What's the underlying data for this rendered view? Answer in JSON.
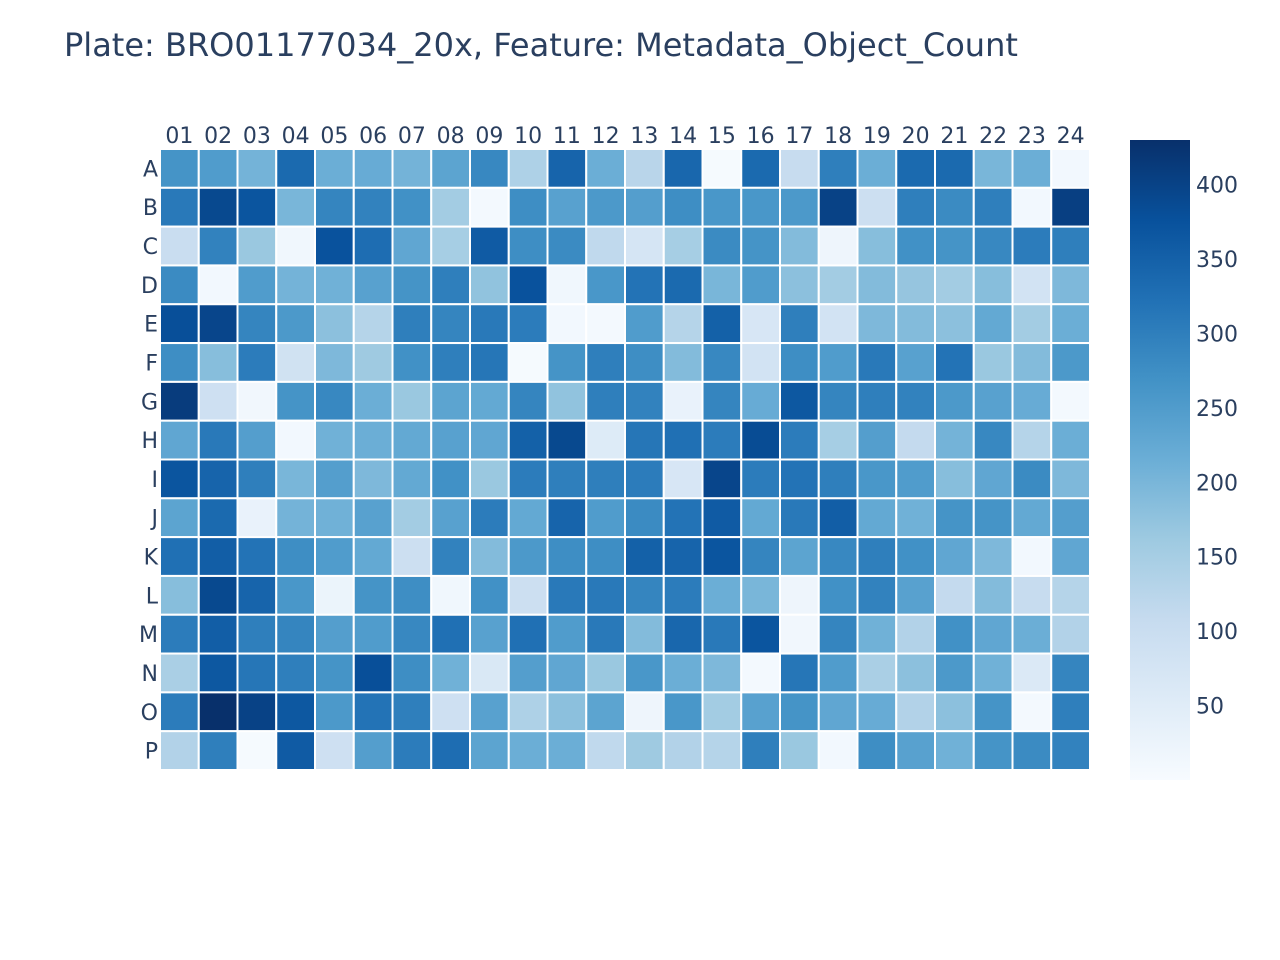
{
  "chart_data": {
    "type": "heatmap",
    "title": "Plate: BRO01177034_20x, Feature: Metadata_Object_Count",
    "columns": [
      "01",
      "02",
      "03",
      "04",
      "05",
      "06",
      "07",
      "08",
      "09",
      "10",
      "11",
      "12",
      "13",
      "14",
      "15",
      "16",
      "17",
      "18",
      "19",
      "20",
      "21",
      "22",
      "23",
      "24"
    ],
    "rows": [
      "A",
      "B",
      "C",
      "D",
      "E",
      "F",
      "G",
      "H",
      "I",
      "J",
      "K",
      "L",
      "M",
      "N",
      "O",
      "P"
    ],
    "values": [
      [
        265,
        250,
        205,
        335,
        215,
        220,
        205,
        235,
        285,
        140,
        345,
        215,
        125,
        340,
        5,
        335,
        105,
        300,
        215,
        335,
        335,
        200,
        215,
        10
      ],
      [
        310,
        390,
        370,
        200,
        290,
        295,
        270,
        155,
        8,
        275,
        240,
        255,
        245,
        275,
        260,
        260,
        255,
        400,
        95,
        300,
        280,
        300,
        10,
        405
      ],
      [
        100,
        295,
        165,
        15,
        375,
        330,
        230,
        150,
        360,
        275,
        280,
        115,
        75,
        150,
        280,
        265,
        190,
        20,
        185,
        270,
        265,
        285,
        305,
        300
      ],
      [
        280,
        10,
        250,
        205,
        210,
        240,
        265,
        300,
        175,
        375,
        15,
        260,
        320,
        335,
        200,
        250,
        180,
        155,
        190,
        170,
        155,
        185,
        80,
        195
      ],
      [
        380,
        395,
        290,
        255,
        180,
        130,
        300,
        290,
        310,
        305,
        10,
        8,
        250,
        130,
        350,
        70,
        300,
        80,
        195,
        190,
        180,
        225,
        155,
        215
      ],
      [
        275,
        185,
        305,
        85,
        195,
        160,
        270,
        300,
        315,
        5,
        265,
        300,
        275,
        190,
        285,
        80,
        275,
        250,
        310,
        240,
        320,
        165,
        190,
        255
      ],
      [
        410,
        90,
        12,
        265,
        285,
        215,
        165,
        235,
        225,
        290,
        175,
        300,
        295,
        30,
        290,
        220,
        365,
        290,
        300,
        295,
        255,
        240,
        220,
        8
      ],
      [
        230,
        310,
        245,
        10,
        210,
        215,
        225,
        240,
        230,
        350,
        390,
        55,
        315,
        325,
        305,
        385,
        305,
        150,
        245,
        110,
        205,
        285,
        130,
        215
      ],
      [
        370,
        345,
        300,
        200,
        245,
        195,
        225,
        270,
        165,
        305,
        300,
        300,
        305,
        70,
        395,
        305,
        320,
        300,
        260,
        250,
        185,
        230,
        280,
        195
      ],
      [
        235,
        335,
        30,
        205,
        210,
        240,
        155,
        240,
        305,
        225,
        345,
        250,
        280,
        320,
        360,
        225,
        310,
        355,
        225,
        210,
        265,
        265,
        225,
        245
      ],
      [
        325,
        355,
        320,
        275,
        250,
        225,
        95,
        295,
        190,
        255,
        275,
        275,
        350,
        345,
        370,
        290,
        235,
        285,
        300,
        270,
        230,
        195,
        10,
        230
      ],
      [
        185,
        390,
        345,
        260,
        25,
        265,
        275,
        15,
        270,
        95,
        310,
        310,
        290,
        305,
        215,
        200,
        20,
        270,
        295,
        240,
        110,
        190,
        105,
        130
      ],
      [
        305,
        355,
        300,
        290,
        245,
        250,
        285,
        325,
        240,
        325,
        250,
        310,
        190,
        340,
        310,
        370,
        12,
        290,
        210,
        135,
        270,
        230,
        215,
        135
      ],
      [
        145,
        365,
        315,
        300,
        265,
        380,
        275,
        210,
        65,
        245,
        230,
        165,
        260,
        215,
        195,
        8,
        315,
        250,
        145,
        180,
        255,
        210,
        60,
        290
      ],
      [
        305,
        430,
        400,
        365,
        255,
        320,
        300,
        90,
        240,
        140,
        180,
        235,
        20,
        260,
        155,
        240,
        265,
        230,
        220,
        135,
        180,
        265,
        8,
        300
      ],
      [
        135,
        300,
        5,
        360,
        90,
        245,
        305,
        330,
        235,
        215,
        215,
        115,
        160,
        135,
        130,
        300,
        165,
        10,
        275,
        240,
        210,
        265,
        280,
        295
      ]
    ],
    "zmin": 0,
    "zmax": 430,
    "colorscale": "Blues",
    "colorbar_ticks": [
      50,
      100,
      150,
      200,
      250,
      300,
      350,
      400
    ],
    "colors": [
      "#f7fbff",
      "#deebf7",
      "#c6dbef",
      "#9ecae1",
      "#6baed6",
      "#4292c6",
      "#2171b5",
      "#08519c",
      "#08306b"
    ],
    "grid": true,
    "legend": "colorbar-right"
  }
}
